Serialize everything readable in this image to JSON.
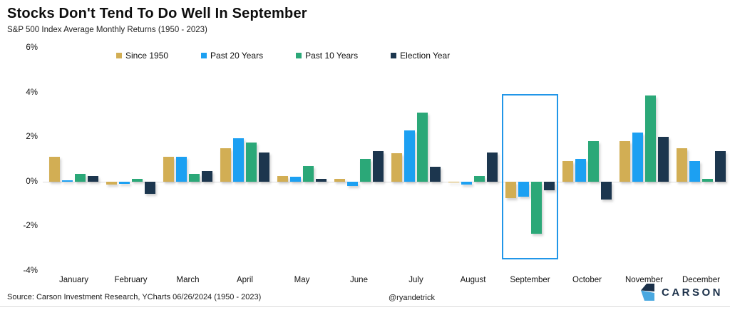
{
  "header": {
    "title": "Stocks Don't Tend To Do Well In September",
    "subtitle": "S&P 500 Index Average Monthly Returns (1950 - 2023)"
  },
  "chart_data": {
    "type": "bar",
    "title": "Stocks Don't Tend To Do Well In September",
    "subtitle": "S&P 500 Index Average Monthly Returns (1950 - 2023)",
    "categories": [
      "January",
      "February",
      "March",
      "April",
      "May",
      "June",
      "July",
      "August",
      "September",
      "October",
      "November",
      "December"
    ],
    "series": [
      {
        "name": "Since 1950",
        "color": "#d2ae54",
        "values": [
          1.1,
          -0.15,
          1.1,
          1.5,
          0.25,
          0.1,
          1.25,
          -0.05,
          -0.75,
          0.9,
          1.8,
          1.5
        ]
      },
      {
        "name": "Past 20 Years",
        "color": "#1ca0f2",
        "values": [
          0.05,
          -0.1,
          1.1,
          1.95,
          0.2,
          -0.2,
          2.3,
          -0.15,
          -0.7,
          1.0,
          2.2,
          0.9
        ]
      },
      {
        "name": "Past 10 Years",
        "color": "#2ba878",
        "values": [
          0.35,
          0.1,
          0.35,
          1.75,
          0.7,
          1.0,
          3.1,
          0.25,
          -2.35,
          1.8,
          3.85,
          0.1
        ]
      },
      {
        "name": "Election Year",
        "color": "#1c364e",
        "values": [
          0.25,
          -0.55,
          0.45,
          1.3,
          0.1,
          1.35,
          0.65,
          1.3,
          -0.4,
          -0.8,
          2.0,
          1.35
        ]
      }
    ],
    "ylim": [
      -4,
      6
    ],
    "yticks": [
      {
        "value": 6,
        "label": "6%"
      },
      {
        "value": 4,
        "label": "4%"
      },
      {
        "value": 2,
        "label": "2%"
      },
      {
        "value": 0,
        "label": "0%"
      },
      {
        "value": -2,
        "label": "-2%"
      },
      {
        "value": -4,
        "label": "-4%"
      }
    ],
    "grid": "none",
    "legend_position": "top",
    "highlighted_category": "September",
    "highlight_color": "#2196e8"
  },
  "footer": {
    "source": "Source: Carson Investment Research, YCharts 06/26/2024 (1950 - 2023)",
    "handle": "@ryandetrick",
    "brand": "CARSON"
  }
}
